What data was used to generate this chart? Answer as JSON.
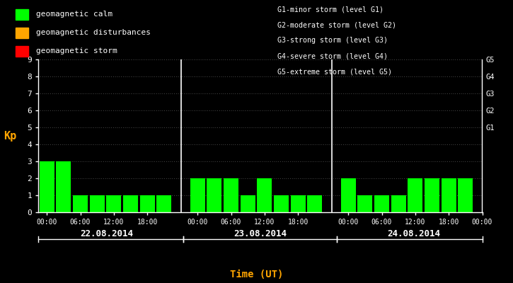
{
  "bg_color": "#000000",
  "bar_color": "#00ff00",
  "bar_color_disturbance": "#ffa500",
  "bar_color_storm": "#ff0000",
  "text_color": "#ffffff",
  "orange_color": "#ffa500",
  "kp_values_day1": [
    3,
    3,
    1,
    1,
    1,
    1,
    1,
    1
  ],
  "kp_values_day2": [
    2,
    2,
    2,
    1,
    2,
    1,
    1,
    1
  ],
  "kp_values_day3": [
    2,
    1,
    1,
    1,
    2,
    2,
    2,
    2
  ],
  "dates": [
    "22.08.2014",
    "23.08.2014",
    "24.08.2014"
  ],
  "ylabel": "Kp",
  "xlabel": "Time (UT)",
  "ylim": [
    0,
    9
  ],
  "yticks": [
    0,
    1,
    2,
    3,
    4,
    5,
    6,
    7,
    8,
    9
  ],
  "right_labels": [
    "G1",
    "G2",
    "G3",
    "G4",
    "G5"
  ],
  "right_label_yvals": [
    5,
    6,
    7,
    8,
    9
  ],
  "legend_calm": "geomagnetic calm",
  "legend_disturbances": "geomagnetic disturbances",
  "legend_storm": "geomagnetic storm",
  "g_labels": [
    "G1-minor storm (level G1)",
    "G2-moderate storm (level G2)",
    "G3-strong storm (level G3)",
    "G4-severe storm (level G4)",
    "G5-extreme storm (level G5)"
  ],
  "font_mono": "monospace"
}
